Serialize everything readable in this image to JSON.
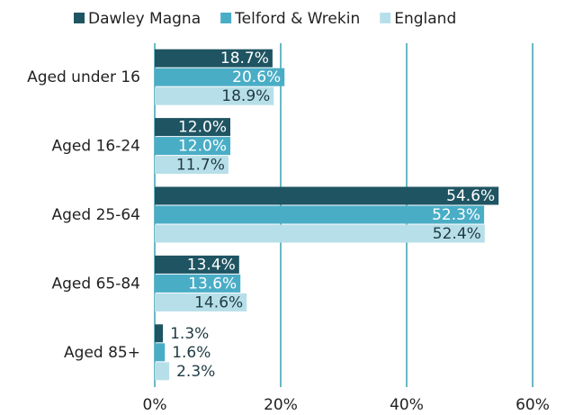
{
  "chart_data": {
    "type": "bar",
    "orientation": "horizontal",
    "categories": [
      "Aged under 16",
      "Aged 16-24",
      "Aged 25-64",
      "Aged 65-84",
      "Aged 85+"
    ],
    "series": [
      {
        "name": "Dawley Magna",
        "color": "#1f5462",
        "values": [
          18.7,
          12.0,
          54.6,
          13.4,
          1.3
        ],
        "value_labels": [
          "18.7%",
          "12.0%",
          "54.6%",
          "13.4%",
          "1.3%"
        ]
      },
      {
        "name": "Telford & Wrekin",
        "color": "#4aadc6",
        "values": [
          20.6,
          12.0,
          52.3,
          13.6,
          1.6
        ],
        "value_labels": [
          "20.6%",
          "12.0%",
          "52.3%",
          "13.6%",
          "1.6%"
        ]
      },
      {
        "name": "England",
        "color": "#b7dfe9",
        "values": [
          18.9,
          11.7,
          52.4,
          14.6,
          2.3
        ],
        "value_labels": [
          "18.9%",
          "11.7%",
          "52.4%",
          "14.6%",
          "2.3%"
        ]
      }
    ],
    "xlim": [
      0,
      60
    ],
    "xticks": [
      {
        "value": 0,
        "label": "0%"
      },
      {
        "value": 20,
        "label": "20%"
      },
      {
        "value": 40,
        "label": "40%"
      },
      {
        "value": 60,
        "label": "60%"
      }
    ],
    "grid": true,
    "legend": "top"
  }
}
